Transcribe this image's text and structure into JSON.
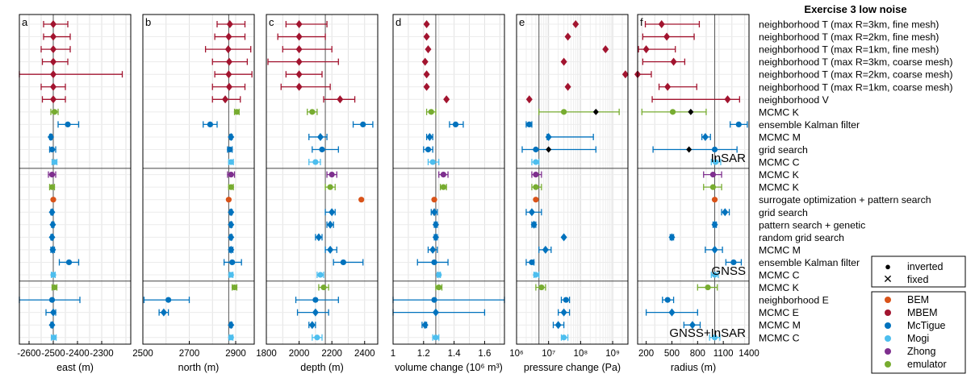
{
  "chart_data": {
    "type": "forest",
    "title": "Exercise 3 low noise",
    "grid": true,
    "groups": [
      "InSAR",
      "GNSS",
      "GNSS+InSAR"
    ],
    "rows": [
      {
        "label": "neighborhood T (max R=3km, fine mesh)",
        "method": "MBEM",
        "marker": "diamond"
      },
      {
        "label": "neighborhood T (max R=2km, fine mesh)",
        "method": "MBEM",
        "marker": "diamond"
      },
      {
        "label": "neighborhood T (max R=1km, fine mesh)",
        "method": "MBEM",
        "marker": "diamond"
      },
      {
        "label": "neighborhood T (max R=3km, coarse mesh)",
        "method": "MBEM",
        "marker": "diamond"
      },
      {
        "label": "neighborhood T (max R=2km, coarse mesh)",
        "method": "MBEM",
        "marker": "diamond"
      },
      {
        "label": "neighborhood T (max R=1km, coarse mesh)",
        "method": "MBEM",
        "marker": "diamond"
      },
      {
        "label": "neighborhood V",
        "method": "MBEM",
        "marker": "diamond"
      },
      {
        "label": "MCMC K",
        "method": "emulator",
        "marker": "circle"
      },
      {
        "label": "ensemble Kalman filter",
        "method": "McTigue",
        "marker": "circle"
      },
      {
        "label": "MCMC M",
        "method": "McTigue",
        "marker": "diamond"
      },
      {
        "label": "grid search",
        "method": "McTigue",
        "marker": "circle"
      },
      {
        "label": "MCMC C",
        "method": "Mogi",
        "marker": "circle"
      },
      {
        "label": "MCMC K",
        "method": "Zhong",
        "marker": "circle"
      },
      {
        "label": "MCMC K",
        "method": "emulator",
        "marker": "circle"
      },
      {
        "label": "surrogate optimization + pattern search",
        "method": "BEM",
        "marker": "circle"
      },
      {
        "label": "grid search",
        "method": "McTigue",
        "marker": "diamond"
      },
      {
        "label": "pattern search + genetic",
        "method": "McTigue",
        "marker": "diamond"
      },
      {
        "label": "random grid search",
        "method": "McTigue",
        "marker": "diamond"
      },
      {
        "label": "MCMC M",
        "method": "McTigue",
        "marker": "diamond"
      },
      {
        "label": "ensemble Kalman filter",
        "method": "McTigue",
        "marker": "circle"
      },
      {
        "label": "MCMC C",
        "method": "Mogi",
        "marker": "circle"
      },
      {
        "label": "MCMC K",
        "method": "emulator",
        "marker": "circle"
      },
      {
        "label": "neighborhood E",
        "method": "McTigue",
        "marker": "circle"
      },
      {
        "label": "MCMC E",
        "method": "McTigue",
        "marker": "diamond"
      },
      {
        "label": "MCMC M",
        "method": "McTigue",
        "marker": "diamond"
      },
      {
        "label": "MCMC C",
        "method": "Mogi",
        "marker": "circle"
      }
    ],
    "panels": [
      {
        "letter": "a",
        "xlabel": "east (m)",
        "xlim": [
          -2640,
          -2180
        ],
        "log": false,
        "ticks": [
          -2600,
          -2500,
          -2400,
          -2300
        ],
        "tick_labels": [
          "-2600",
          "-2500",
          "-2400",
          "-2300"
        ],
        "reference": -2500,
        "values": [
          -2500,
          -2500,
          -2500,
          -2500,
          -2500,
          -2500,
          -2500,
          -2495,
          -2440,
          -2510,
          -2505,
          -2495,
          -2505,
          -2505,
          -2500,
          -2505,
          -2502,
          -2505,
          -2502,
          -2435,
          -2500,
          -2495,
          -2505,
          -2500,
          -2505,
          -2498
        ],
        "lo": [
          -2540,
          -2540,
          -2550,
          -2545,
          -2640,
          -2550,
          -2545,
          -2510,
          -2480,
          -2515,
          -2515,
          -2505,
          -2520,
          -2515,
          -2500,
          -2510,
          -2507,
          -2510,
          -2510,
          -2475,
          -2508,
          -2505,
          -2640,
          -2530,
          -2510,
          -2508
        ],
        "hi": [
          -2440,
          -2430,
          -2430,
          -2440,
          -2215,
          -2450,
          -2450,
          -2480,
          -2395,
          -2505,
          -2490,
          -2485,
          -2490,
          -2495,
          -2500,
          -2500,
          -2497,
          -2500,
          -2495,
          -2395,
          -2492,
          -2485,
          -2390,
          -2490,
          -2500,
          -2488
        ]
      },
      {
        "letter": "b",
        "xlabel": "north (m)",
        "xlim": [
          2500,
          2980
        ],
        "log": false,
        "ticks": [
          2500,
          2700,
          2900
        ],
        "tick_labels": [
          "2500",
          "2700",
          "2900"
        ],
        "reference": 2870,
        "values": [
          2875,
          2870,
          2868,
          2872,
          2870,
          2872,
          2855,
          2905,
          2790,
          2880,
          2875,
          2880,
          2880,
          2880,
          2870,
          2880,
          2880,
          2880,
          2880,
          2885,
          2880,
          2895,
          2610,
          2590,
          2880,
          2880
        ],
        "lo": [
          2820,
          2810,
          2770,
          2800,
          2810,
          2800,
          2800,
          2895,
          2760,
          2875,
          2865,
          2870,
          2865,
          2870,
          2870,
          2875,
          2875,
          2875,
          2872,
          2850,
          2872,
          2885,
          2505,
          2570,
          2875,
          2872
        ],
        "hi": [
          2940,
          2940,
          2965,
          2950,
          2970,
          2940,
          2920,
          2915,
          2820,
          2885,
          2885,
          2890,
          2895,
          2890,
          2870,
          2885,
          2885,
          2885,
          2888,
          2925,
          2888,
          2905,
          2700,
          2610,
          2885,
          2888
        ]
      },
      {
        "letter": "c",
        "xlabel": "depth (m)",
        "xlim": [
          1800,
          2480
        ],
        "log": false,
        "ticks": [
          1800,
          2000,
          2200,
          2400
        ],
        "tick_labels": [
          "1800",
          "2000",
          "2200",
          "2400"
        ],
        "reference": 2160,
        "values": [
          2000,
          2000,
          2000,
          2000,
          2000,
          2000,
          2250,
          2080,
          2390,
          2130,
          2140,
          2100,
          2200,
          2190,
          2380,
          2200,
          2190,
          2120,
          2190,
          2270,
          2130,
          2150,
          2100,
          2100,
          2080,
          2110
        ],
        "lo": [
          1920,
          1870,
          1900,
          1810,
          1920,
          1890,
          2150,
          2050,
          2330,
          2060,
          2080,
          2060,
          2170,
          2160,
          2380,
          2160,
          2170,
          2100,
          2160,
          2210,
          2110,
          2120,
          1980,
          1990,
          2060,
          2080
        ],
        "hi": [
          2170,
          2160,
          2200,
          2240,
          2140,
          2190,
          2340,
          2110,
          2450,
          2170,
          2240,
          2130,
          2230,
          2220,
          2380,
          2220,
          2210,
          2140,
          2230,
          2390,
          2150,
          2180,
          2240,
          2180,
          2100,
          2140
        ]
      },
      {
        "letter": "d",
        "xlabel": "volume change (10⁶ m³)",
        "xlim": [
          1,
          1.73
        ],
        "log": false,
        "ticks": [
          1,
          1.2,
          1.4,
          1.6
        ],
        "tick_labels": [
          "1",
          "1.2",
          "1.4",
          "1.6"
        ],
        "reference": 1.28,
        "values": [
          1.22,
          1.22,
          1.23,
          1.21,
          1.22,
          1.22,
          1.35,
          1.25,
          1.41,
          1.24,
          1.23,
          1.26,
          1.33,
          1.33,
          1.27,
          1.27,
          1.28,
          1.28,
          1.26,
          1.27,
          1.3,
          1.3,
          1.27,
          1.28,
          1.21,
          1.28
        ],
        "lo": [
          1.22,
          1.22,
          1.23,
          1.21,
          1.22,
          1.22,
          1.35,
          1.22,
          1.37,
          1.22,
          1.2,
          1.23,
          1.3,
          1.31,
          1.27,
          1.25,
          1.27,
          1.27,
          1.23,
          1.16,
          1.29,
          1.28,
          1.0,
          1.0,
          1.19,
          1.26
        ],
        "hi": [
          1.22,
          1.22,
          1.23,
          1.21,
          1.22,
          1.22,
          1.35,
          1.28,
          1.46,
          1.26,
          1.26,
          1.3,
          1.36,
          1.35,
          1.27,
          1.29,
          1.29,
          1.29,
          1.29,
          1.36,
          1.31,
          1.32,
          1.73,
          1.6,
          1.22,
          1.3
        ]
      },
      {
        "letter": "e",
        "xlabel": "pressure change (Pa)",
        "xlim": [
          1000000,
          3000000000
        ],
        "log": true,
        "ticks": [
          1000000,
          10000000,
          100000000,
          1000000000
        ],
        "tick_labels": [
          "10⁶",
          "10⁷",
          "10⁸",
          "10⁹"
        ],
        "reference": 5000000,
        "values": [
          70000000,
          40000000,
          600000000,
          30000000,
          2500000000,
          40000000,
          2500000,
          30000000,
          2500000,
          10000000,
          4000000,
          4000000,
          4000000,
          4000000,
          4000000,
          3000000,
          3500000,
          30000000,
          8000000,
          3000000,
          4000000,
          6000000,
          35000000,
          30000000,
          20000000,
          30000000
        ],
        "lo": [
          70000000,
          40000000,
          600000000,
          30000000,
          2500000000,
          40000000,
          2500000,
          5000000,
          2000000,
          9000000,
          1500000,
          3000000,
          3000000,
          3000000,
          4000000,
          2000000,
          3000000,
          30000000,
          5000000,
          2000000,
          3500000,
          4000000,
          25000000,
          20000000,
          14000000,
          25000000
        ],
        "hi": [
          70000000,
          40000000,
          600000000,
          30000000,
          2500000000,
          40000000,
          2500000,
          1600000000,
          3000000,
          250000000,
          300000000,
          5000000,
          6000000,
          6000000,
          4000000,
          6000000,
          4000000,
          30000000,
          12000000,
          3500000,
          5000000,
          8000000,
          45000000,
          45000000,
          30000000,
          40000000
        ],
        "inverted_values": [
          null,
          null,
          null,
          null,
          null,
          null,
          null,
          300000000,
          null,
          null,
          10000000,
          null,
          null,
          null,
          null,
          null,
          null,
          null,
          null,
          null,
          null,
          null,
          null,
          null,
          null,
          null
        ]
      },
      {
        "letter": "f",
        "xlabel": "radius (m)",
        "xlim": [
          100,
          1400
        ],
        "log": false,
        "ticks": [
          200,
          500,
          800,
          1100,
          1400
        ],
        "tick_labels": [
          "200",
          "500",
          "800",
          "1100",
          "1400"
        ],
        "reference": 1000,
        "values": [
          380,
          440,
          200,
          520,
          100,
          450,
          1150,
          510,
          1280,
          890,
          1000,
          1010,
          980,
          980,
          1000,
          1120,
          1000,
          500,
          1000,
          1220,
          1000,
          920,
          450,
          500,
          740,
          1000
        ],
        "lo": [
          190,
          160,
          110,
          160,
          100,
          350,
          270,
          150,
          1180,
          850,
          280,
          960,
          870,
          870,
          1000,
          1080,
          980,
          480,
          890,
          1130,
          960,
          800,
          390,
          200,
          640,
          940
        ],
        "hi": [
          820,
          760,
          540,
          650,
          260,
          790,
          1290,
          900,
          1380,
          950,
          1260,
          1070,
          1080,
          1080,
          1000,
          1170,
          1020,
          520,
          1090,
          1310,
          1040,
          1030,
          520,
          800,
          830,
          1060
        ],
        "inverted_values": [
          null,
          null,
          null,
          null,
          null,
          null,
          null,
          720,
          null,
          null,
          700,
          null,
          null,
          null,
          null,
          null,
          null,
          null,
          null,
          null,
          null,
          null,
          null,
          null,
          null,
          null
        ]
      }
    ],
    "legend_markers": [
      {
        "label": "inverted",
        "symbol": "●"
      },
      {
        "label": "fixed",
        "symbol": "✕"
      }
    ],
    "legend_methods": [
      {
        "label": "BEM",
        "color": "#d95319"
      },
      {
        "label": "MBEM",
        "color": "#a2142f"
      },
      {
        "label": "McTigue",
        "color": "#0072bd"
      },
      {
        "label": "Mogi",
        "color": "#4dbeee"
      },
      {
        "label": "Zhong",
        "color": "#7e2f8e"
      },
      {
        "label": "emulator",
        "color": "#77ac30"
      }
    ]
  }
}
